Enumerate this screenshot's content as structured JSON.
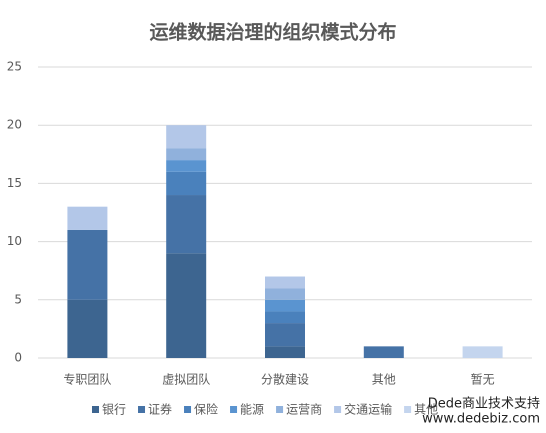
{
  "chart_data": {
    "type": "stacked_bar",
    "title": "运维数据治理的组织模式分布",
    "categories": [
      "专职团队",
      "虚拟团队",
      "分散建设",
      "其他",
      "暂无"
    ],
    "series": [
      {
        "name": "银行",
        "color": "#3d6590",
        "values": [
          5,
          9,
          1,
          0,
          0
        ]
      },
      {
        "name": "证券",
        "color": "#4572a6",
        "values": [
          6,
          5,
          2,
          1,
          0
        ]
      },
      {
        "name": "保险",
        "color": "#4a81bc",
        "values": [
          0,
          2,
          1,
          0,
          0
        ]
      },
      {
        "name": "能源",
        "color": "#5a94d0",
        "values": [
          0,
          1,
          1,
          0,
          0
        ]
      },
      {
        "name": "运营商",
        "color": "#90b1dc",
        "values": [
          0,
          1,
          1,
          0,
          0
        ]
      },
      {
        "name": "交通运输",
        "color": "#b3c7e8",
        "values": [
          2,
          2,
          1,
          0,
          0
        ]
      },
      {
        "name": "其他",
        "color": "#c4d5ee",
        "values": [
          0,
          0,
          0,
          0,
          1
        ]
      }
    ],
    "ylim": [
      0,
      25
    ],
    "yticks": [
      0,
      5,
      10,
      15,
      20,
      25
    ],
    "grid": true,
    "watermark": [
      "Dede商业技术支持",
      "www.dedebiz.com"
    ]
  }
}
